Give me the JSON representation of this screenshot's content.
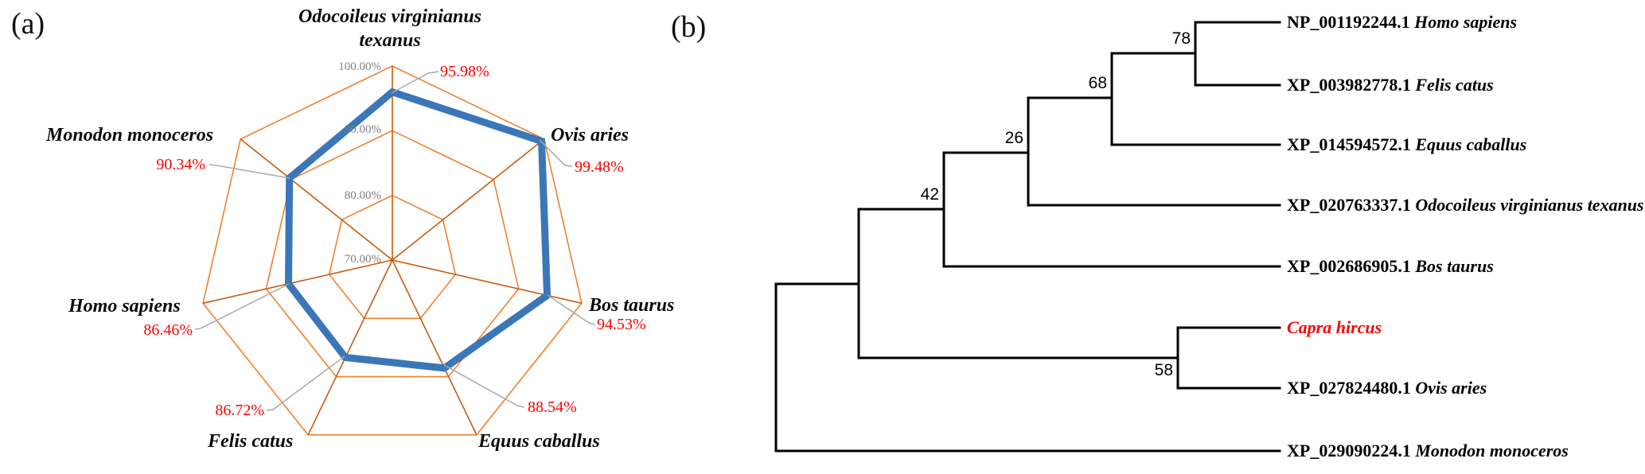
{
  "figure": {
    "panel_a_tag": "(a)",
    "panel_b_tag": "(b)"
  },
  "chart_data": [
    {
      "type": "radar",
      "title": "",
      "categories": [
        "Odocoileus virginianus texanus",
        "Ovis aries",
        "Bos taurus",
        "Equus caballus",
        "Felis catus",
        "Homo sapiens",
        "Monodon monoceros"
      ],
      "values": [
        95.98,
        99.48,
        94.53,
        88.54,
        86.72,
        86.46,
        90.34
      ],
      "value_labels": [
        "95.98%",
        "99.48%",
        "94.53%",
        "88.54%",
        "86.72%",
        "86.46%",
        "90.34%"
      ],
      "axis_ticks": [
        "100.00%",
        "90.00%",
        "80.00%",
        "70.00%"
      ],
      "scale_min": 70,
      "scale_max": 100,
      "ring_values": [
        80,
        90,
        100
      ],
      "grid_on": true,
      "legend": "none",
      "colors": {
        "ring": "#F0812F",
        "spoke": "#C75B11",
        "series": "#3B76B8",
        "value_label": "#FF0000",
        "tick_label": "#7F7F7F",
        "leader": "#A9A9A9"
      }
    },
    {
      "type": "tree",
      "newick": "((((((Homo_sapiens,Felis_catus)78,Equus_caballus)68,Odocoileus_virginianus_texanus)26,Bos_taurus)42,(Capra_hircus,Ovis_aries)58),Monodon_monoceros)",
      "bootstrap_values": [
        "78",
        "68",
        "26",
        "42",
        "58"
      ],
      "leaves": [
        {
          "accession": "NP_001192244.1",
          "species": "Homo sapiens",
          "color": "#000000"
        },
        {
          "accession": "XP_003982778.1",
          "species": "Felis catus",
          "color": "#000000"
        },
        {
          "accession": "XP_014594572.1",
          "species": "Equus caballus",
          "color": "#000000"
        },
        {
          "accession": "XP_020763337.1",
          "species": "Odocoileus virginianus texanus",
          "color": "#000000"
        },
        {
          "accession": "XP_002686905.1",
          "species": "Bos taurus",
          "color": "#000000"
        },
        {
          "accession": "",
          "species": "Capra hircus",
          "color": "#FF0000"
        },
        {
          "accession": "XP_027824480.1",
          "species": "Ovis aries",
          "color": "#000000"
        },
        {
          "accession": "XP_029090224.1",
          "species": "Monodon monoceros",
          "color": "#000000"
        }
      ],
      "line_color": "#000000"
    }
  ]
}
